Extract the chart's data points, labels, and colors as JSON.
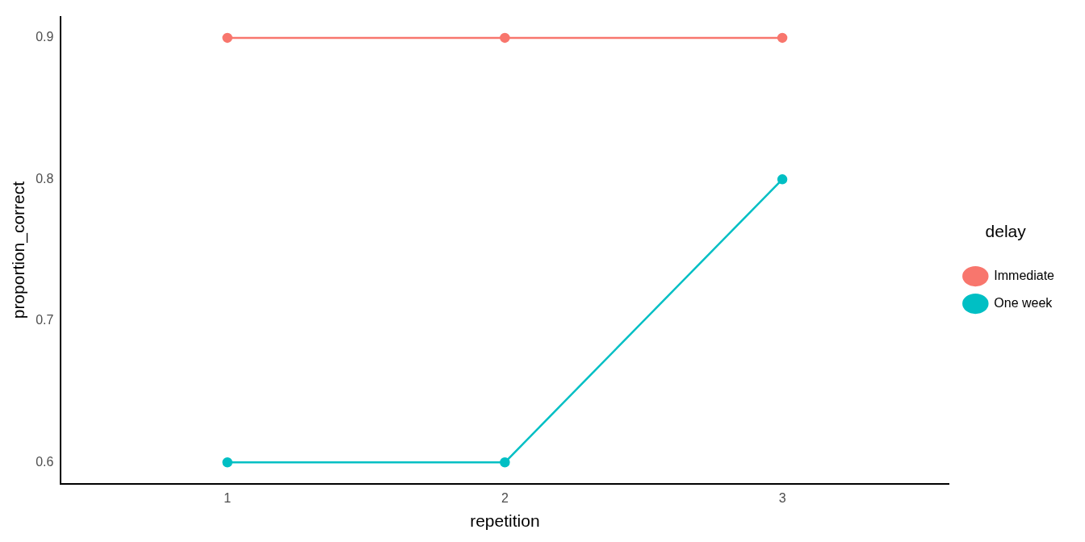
{
  "chart_data": {
    "type": "line",
    "xlabel": "repetition",
    "ylabel": "proportion_correct",
    "legend_title": "delay",
    "x": [
      1,
      2,
      3
    ],
    "series": [
      {
        "name": "Immediate",
        "color": "#f8766d",
        "values": [
          0.9,
          0.9,
          0.9
        ]
      },
      {
        "name": "One week",
        "color": "#00bfc4",
        "values": [
          0.6,
          0.6,
          0.8
        ]
      }
    ],
    "xlim": [
      0.4,
      3.6
    ],
    "xticks": [
      1,
      2,
      3
    ],
    "ylim": [
      0.585,
      0.915
    ],
    "yticks": [
      0.6,
      0.7,
      0.8,
      0.9
    ],
    "grid": false,
    "legend": "right",
    "marker": "circle",
    "line_style": "solid"
  }
}
